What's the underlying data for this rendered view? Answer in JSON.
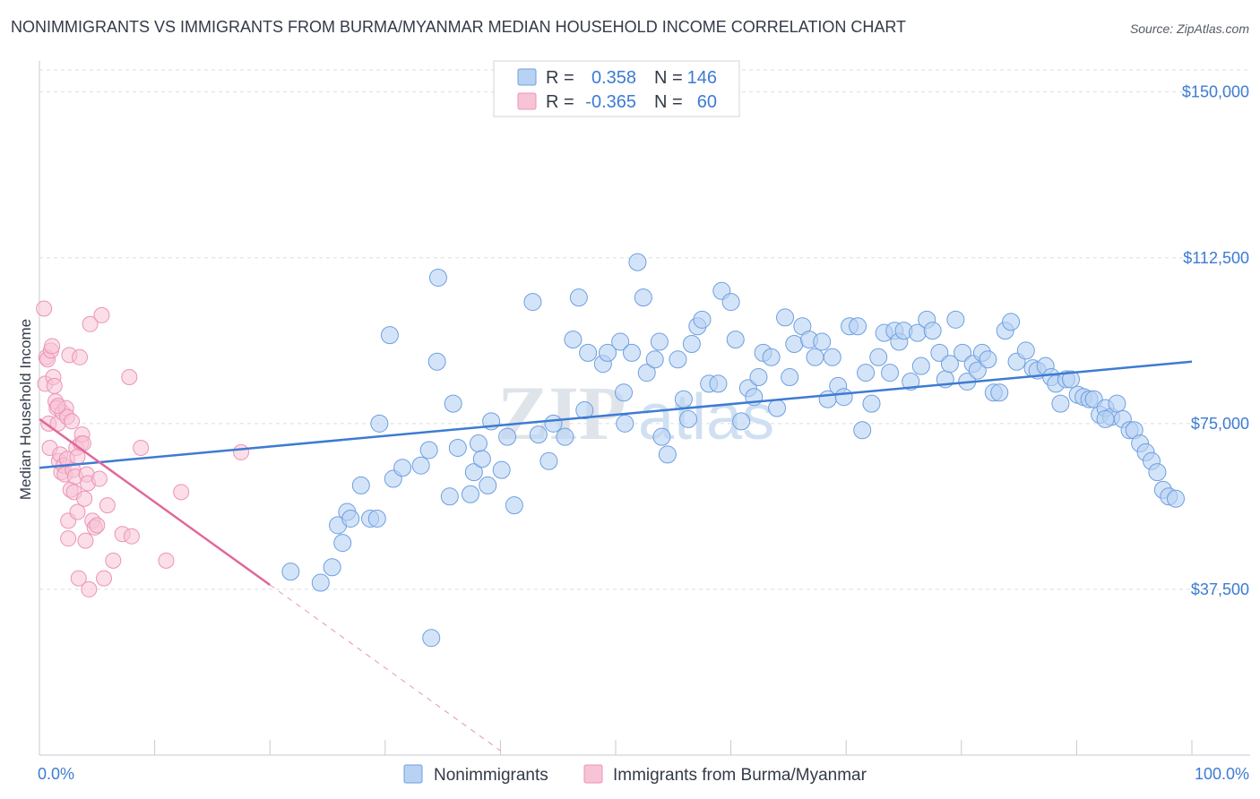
{
  "header": {
    "title": "NONIMMIGRANTS VS IMMIGRANTS FROM BURMA/MYANMAR MEDIAN HOUSEHOLD INCOME CORRELATION CHART",
    "source": "Source: ZipAtlas.com"
  },
  "watermark": {
    "zip": "ZIP",
    "atlas": "atlas"
  },
  "colors": {
    "blue": "#3d7bd3",
    "blue_fill": "#b8d2f3",
    "blue_stroke": "#6e9fe0",
    "pink": "#e0679a",
    "pink_fill": "#f7c3d6",
    "pink_stroke": "#ec93b6",
    "grid": "#d9dde3"
  },
  "chart_data": {
    "type": "scatter",
    "title": "NONIMMIGRANTS VS IMMIGRANTS FROM BURMA/MYANMAR MEDIAN HOUSEHOLD INCOME CORRELATION CHART",
    "xlabel": "",
    "ylabel": "Median Household Income",
    "xlim": [
      0,
      100
    ],
    "ylim": [
      0,
      155000
    ],
    "x_tick_labels": [
      "0.0%",
      "100.0%"
    ],
    "y_ticks": [
      37500,
      75000,
      112500,
      150000
    ],
    "y_tick_labels": [
      "$37,500",
      "$75,000",
      "$112,500",
      "$150,000"
    ],
    "legend_top": {
      "rows": [
        {
          "r_label": "R =",
          "r_value": "0.358",
          "n_label": "N =",
          "n_value": "146"
        },
        {
          "r_label": "R =",
          "r_value": "-0.365",
          "n_label": "N =",
          "n_value": "60"
        }
      ]
    },
    "legend_bottom": [
      "Nonimmigrants",
      "Immigrants from Burma/Myanmar"
    ],
    "series": [
      {
        "name": "Nonimmigrants",
        "trend": {
          "x0": 0,
          "y0": 65000,
          "x1": 100,
          "y1": 89000
        },
        "points": [
          [
            21.8,
            41500
          ],
          [
            24.4,
            39000
          ],
          [
            25.4,
            42500
          ],
          [
            25.9,
            52000
          ],
          [
            26.7,
            55000
          ],
          [
            27.0,
            53500
          ],
          [
            26.3,
            48000
          ],
          [
            27.9,
            61000
          ],
          [
            28.7,
            53500
          ],
          [
            29.3,
            53500
          ],
          [
            29.5,
            75000
          ],
          [
            30.4,
            95000
          ],
          [
            30.7,
            62500
          ],
          [
            31.5,
            65000
          ],
          [
            33.1,
            65500
          ],
          [
            33.8,
            69000
          ],
          [
            34.0,
            26500
          ],
          [
            34.5,
            89000
          ],
          [
            34.6,
            108000
          ],
          [
            35.6,
            58500
          ],
          [
            35.9,
            79500
          ],
          [
            36.3,
            69500
          ],
          [
            37.4,
            59000
          ],
          [
            37.7,
            64000
          ],
          [
            38.1,
            70500
          ],
          [
            38.4,
            67000
          ],
          [
            38.9,
            61000
          ],
          [
            39.2,
            75500
          ],
          [
            40.1,
            64500
          ],
          [
            40.6,
            72000
          ],
          [
            41.2,
            56500
          ],
          [
            42.8,
            102500
          ],
          [
            43.3,
            72500
          ],
          [
            44.2,
            66500
          ],
          [
            44.6,
            75000
          ],
          [
            45.6,
            72000
          ],
          [
            46.3,
            94000
          ],
          [
            46.8,
            103500
          ],
          [
            47.3,
            78000
          ],
          [
            47.6,
            91000
          ],
          [
            48.9,
            88500
          ],
          [
            49.3,
            91000
          ],
          [
            50.4,
            93500
          ],
          [
            50.7,
            82000
          ],
          [
            50.8,
            75000
          ],
          [
            51.4,
            91000
          ],
          [
            51.9,
            111500
          ],
          [
            52.4,
            103500
          ],
          [
            52.7,
            86500
          ],
          [
            53.4,
            89500
          ],
          [
            53.8,
            93500
          ],
          [
            54.0,
            72000
          ],
          [
            54.5,
            68000
          ],
          [
            55.4,
            89500
          ],
          [
            55.9,
            80500
          ],
          [
            56.3,
            76000
          ],
          [
            56.6,
            93000
          ],
          [
            57.1,
            97000
          ],
          [
            57.5,
            98500
          ],
          [
            58.1,
            84000
          ],
          [
            58.9,
            84000
          ],
          [
            59.2,
            105000
          ],
          [
            60.0,
            102500
          ],
          [
            60.4,
            94000
          ],
          [
            60.9,
            75500
          ],
          [
            61.5,
            83000
          ],
          [
            62.0,
            81000
          ],
          [
            62.4,
            85500
          ],
          [
            62.8,
            91000
          ],
          [
            63.5,
            90000
          ],
          [
            64.0,
            78500
          ],
          [
            64.7,
            99000
          ],
          [
            65.1,
            85500
          ],
          [
            65.5,
            93000
          ],
          [
            66.2,
            97000
          ],
          [
            66.8,
            94000
          ],
          [
            67.3,
            90000
          ],
          [
            67.9,
            93500
          ],
          [
            68.4,
            80500
          ],
          [
            68.8,
            90000
          ],
          [
            69.3,
            83500
          ],
          [
            69.8,
            81000
          ],
          [
            70.3,
            97000
          ],
          [
            71.0,
            97000
          ],
          [
            71.4,
            73500
          ],
          [
            71.7,
            86500
          ],
          [
            72.2,
            79500
          ],
          [
            72.8,
            90000
          ],
          [
            73.3,
            95500
          ],
          [
            73.8,
            86500
          ],
          [
            74.2,
            96000
          ],
          [
            74.6,
            93500
          ],
          [
            75.0,
            96000
          ],
          [
            75.6,
            84500
          ],
          [
            76.2,
            95500
          ],
          [
            76.5,
            88000
          ],
          [
            77.0,
            98500
          ],
          [
            77.5,
            96000
          ],
          [
            78.1,
            91000
          ],
          [
            78.6,
            85000
          ],
          [
            79.0,
            88500
          ],
          [
            79.5,
            98500
          ],
          [
            80.1,
            91000
          ],
          [
            80.5,
            84500
          ],
          [
            81.0,
            88500
          ],
          [
            81.4,
            87000
          ],
          [
            81.8,
            91000
          ],
          [
            82.3,
            89500
          ],
          [
            82.8,
            82000
          ],
          [
            83.3,
            82000
          ],
          [
            83.8,
            96000
          ],
          [
            84.3,
            98000
          ],
          [
            84.8,
            89000
          ],
          [
            85.6,
            91500
          ],
          [
            86.2,
            87500
          ],
          [
            86.6,
            87000
          ],
          [
            87.3,
            88000
          ],
          [
            87.8,
            85500
          ],
          [
            88.2,
            84000
          ],
          [
            88.6,
            79500
          ],
          [
            89.1,
            85000
          ],
          [
            89.5,
            85000
          ],
          [
            90.1,
            81500
          ],
          [
            90.6,
            81000
          ],
          [
            91.1,
            80500
          ],
          [
            91.5,
            80500
          ],
          [
            92.0,
            77000
          ],
          [
            92.5,
            78500
          ],
          [
            93.0,
            76500
          ],
          [
            93.5,
            79500
          ],
          [
            94.0,
            76000
          ],
          [
            94.6,
            73500
          ],
          [
            95.0,
            73500
          ],
          [
            95.5,
            70500
          ],
          [
            96.0,
            68500
          ],
          [
            96.5,
            66500
          ],
          [
            97.0,
            64000
          ],
          [
            97.5,
            60000
          ],
          [
            98.0,
            58500
          ],
          [
            98.6,
            58000
          ],
          [
            92.5,
            76000
          ]
        ]
      },
      {
        "name": "Immigrants from Burma/Myanmar",
        "trend": {
          "x0": 0,
          "y0": 76000,
          "x1": 20,
          "y1": 38500,
          "dash_x1": 40,
          "dash_y1": 1000
        },
        "points": [
          [
            0.4,
            101000
          ],
          [
            0.5,
            84000
          ],
          [
            0.6,
            90000
          ],
          [
            0.7,
            89500
          ],
          [
            0.8,
            75000
          ],
          [
            0.9,
            69500
          ],
          [
            1.0,
            91500
          ],
          [
            1.1,
            92500
          ],
          [
            1.2,
            85500
          ],
          [
            1.3,
            83500
          ],
          [
            1.4,
            80000
          ],
          [
            1.5,
            78500
          ],
          [
            1.6,
            75000
          ],
          [
            1.7,
            66500
          ],
          [
            1.8,
            68000
          ],
          [
            1.9,
            64000
          ],
          [
            2.0,
            77500
          ],
          [
            2.1,
            65500
          ],
          [
            2.2,
            63500
          ],
          [
            2.3,
            78500
          ],
          [
            2.4,
            76500
          ],
          [
            2.5,
            53000
          ],
          [
            2.5,
            49000
          ],
          [
            2.6,
            90500
          ],
          [
            2.7,
            60000
          ],
          [
            2.8,
            75500
          ],
          [
            2.9,
            64500
          ],
          [
            3.0,
            59500
          ],
          [
            3.1,
            63000
          ],
          [
            3.2,
            69500
          ],
          [
            3.3,
            55000
          ],
          [
            3.4,
            40000
          ],
          [
            3.5,
            90000
          ],
          [
            3.6,
            70500
          ],
          [
            3.7,
            72500
          ],
          [
            3.8,
            70500
          ],
          [
            3.9,
            58000
          ],
          [
            4.0,
            48500
          ],
          [
            4.1,
            63500
          ],
          [
            4.2,
            61500
          ],
          [
            4.3,
            37500
          ],
          [
            4.4,
            97500
          ],
          [
            4.6,
            53000
          ],
          [
            4.8,
            51500
          ],
          [
            5.0,
            52000
          ],
          [
            5.2,
            62500
          ],
          [
            5.4,
            99500
          ],
          [
            5.6,
            40000
          ],
          [
            5.9,
            56500
          ],
          [
            6.4,
            44000
          ],
          [
            7.2,
            50000
          ],
          [
            7.8,
            85500
          ],
          [
            8.0,
            49500
          ],
          [
            8.8,
            69500
          ],
          [
            11.0,
            44000
          ],
          [
            12.3,
            59500
          ],
          [
            17.5,
            68500
          ],
          [
            2.4,
            67000
          ],
          [
            3.3,
            67500
          ],
          [
            1.6,
            79000
          ]
        ]
      }
    ]
  }
}
